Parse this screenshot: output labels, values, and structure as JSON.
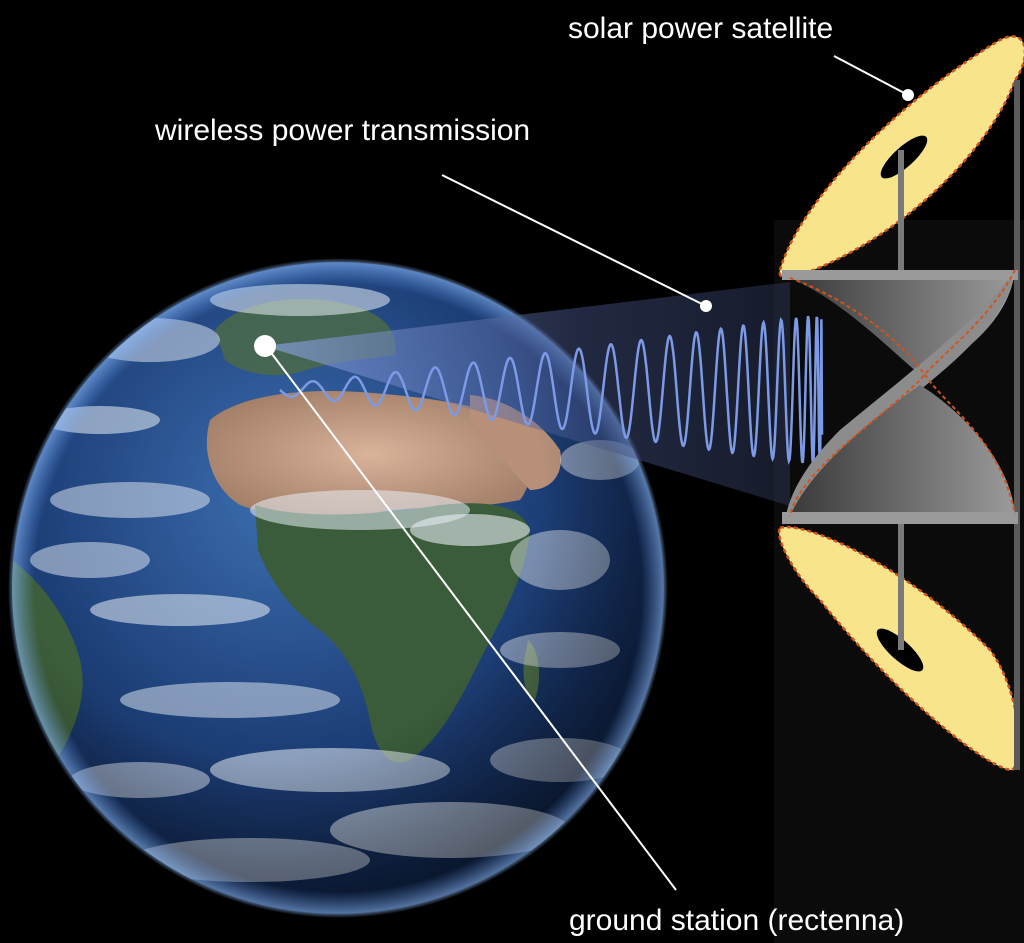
{
  "labels": {
    "satellite": "solar power satellite",
    "transmission": "wireless power transmission",
    "ground_station": "ground station (rectenna)"
  },
  "colors": {
    "background": "#000000",
    "label_text": "#ffffff",
    "leader_line": "#ffffff",
    "solar_panel_fill": "#f8e48a",
    "solar_panel_outline": "#d2541c",
    "beam_wave": "#7c9ae6",
    "beam_cone": "#5a6aa0",
    "ocean": "#1d3f78",
    "land_desert": "#c09a80",
    "land_vegetation": "#3a5c3a",
    "clouds": "#e8eef5"
  },
  "icons": {
    "planet": "earth-globe",
    "satellite": "solar-power-satellite",
    "beam": "microwave-beam"
  }
}
